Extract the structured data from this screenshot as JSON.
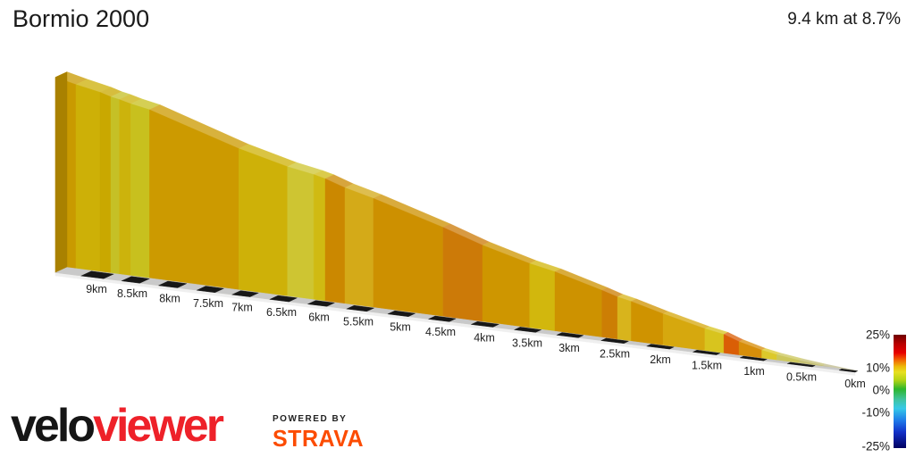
{
  "header": {
    "title": "Bormio 2000",
    "summary": "9.4 km at 8.7%"
  },
  "chart_data": {
    "type": "area",
    "title": "Bormio 2000",
    "distance_km": 9.4,
    "avg_gradient_pct": 8.7,
    "x_axis": {
      "unit": "km",
      "range_km": [
        0,
        9.4
      ],
      "note": "distance remaining, 9km at left through 0km at right",
      "ticks": [
        {
          "km": 9,
          "label": "9km"
        },
        {
          "km": 8.5,
          "label": "8.5km"
        },
        {
          "km": 8,
          "label": "8km"
        },
        {
          "km": 7.5,
          "label": "7.5km"
        },
        {
          "km": 7,
          "label": "7km"
        },
        {
          "km": 6.5,
          "label": "6.5km"
        },
        {
          "km": 6,
          "label": "6km"
        },
        {
          "km": 5.5,
          "label": "5.5km"
        },
        {
          "km": 5,
          "label": "5km"
        },
        {
          "km": 4.5,
          "label": "4.5km"
        },
        {
          "km": 4,
          "label": "4km"
        },
        {
          "km": 3.5,
          "label": "3.5km"
        },
        {
          "km": 3,
          "label": "3km"
        },
        {
          "km": 2.5,
          "label": "2.5km"
        },
        {
          "km": 2,
          "label": "2km"
        },
        {
          "km": 1.5,
          "label": "1.5km"
        },
        {
          "km": 1,
          "label": "1km"
        },
        {
          "km": 0.5,
          "label": "0.5km"
        },
        {
          "km": 0,
          "label": "0km"
        }
      ]
    },
    "segments": [
      {
        "from_km": 9.4,
        "to_km": 9.2,
        "gradient_pct": 10,
        "color": "#C99A00"
      },
      {
        "from_km": 9.2,
        "to_km": 8.95,
        "gradient_pct": 8,
        "color": "#CDB007"
      },
      {
        "from_km": 8.95,
        "to_km": 8.8,
        "gradient_pct": 8.5,
        "color": "#C9A800"
      },
      {
        "from_km": 8.8,
        "to_km": 8.68,
        "gradient_pct": 6,
        "color": "#C5C026"
      },
      {
        "from_km": 8.68,
        "to_km": 8.52,
        "gradient_pct": 7.5,
        "color": "#CCB30C"
      },
      {
        "from_km": 8.52,
        "to_km": 8.27,
        "gradient_pct": 6,
        "color": "#C8C01E"
      },
      {
        "from_km": 8.27,
        "to_km": 7.05,
        "gradient_pct": 9.5,
        "color": "#CC9A00"
      },
      {
        "from_km": 7.05,
        "to_km": 6.42,
        "gradient_pct": 8,
        "color": "#CEB108"
      },
      {
        "from_km": 6.42,
        "to_km": 6.07,
        "gradient_pct": 5.5,
        "color": "#CEC532"
      },
      {
        "from_km": 6.07,
        "to_km": 5.92,
        "gradient_pct": 7.5,
        "color": "#D0BA12"
      },
      {
        "from_km": 5.92,
        "to_km": 5.67,
        "gradient_pct": 11,
        "color": "#CB8800"
      },
      {
        "from_km": 5.67,
        "to_km": 5.32,
        "gradient_pct": 8.5,
        "color": "#D4AA18"
      },
      {
        "from_km": 5.32,
        "to_km": 4.47,
        "gradient_pct": 10,
        "color": "#CD9000"
      },
      {
        "from_km": 4.47,
        "to_km": 4.02,
        "gradient_pct": 12,
        "color": "#CC7A08"
      },
      {
        "from_km": 4.02,
        "to_km": 3.47,
        "gradient_pct": 9.5,
        "color": "#CE9600"
      },
      {
        "from_km": 3.47,
        "to_km": 3.17,
        "gradient_pct": 7,
        "color": "#D2B70D"
      },
      {
        "from_km": 3.17,
        "to_km": 2.64,
        "gradient_pct": 10,
        "color": "#CD9200"
      },
      {
        "from_km": 2.64,
        "to_km": 2.47,
        "gradient_pct": 11.5,
        "color": "#CC7E04"
      },
      {
        "from_km": 2.47,
        "to_km": 2.32,
        "gradient_pct": 8,
        "color": "#D8B41C"
      },
      {
        "from_km": 2.32,
        "to_km": 1.97,
        "gradient_pct": 10,
        "color": "#CF9300"
      },
      {
        "from_km": 1.97,
        "to_km": 1.52,
        "gradient_pct": 9,
        "color": "#D6A80E"
      },
      {
        "from_km": 1.52,
        "to_km": 1.32,
        "gradient_pct": 7,
        "color": "#D8C41E"
      },
      {
        "from_km": 1.32,
        "to_km": 1.16,
        "gradient_pct": 14,
        "color": "#DA5E06"
      },
      {
        "from_km": 1.16,
        "to_km": 0.92,
        "gradient_pct": 10,
        "color": "#D78E0A"
      },
      {
        "from_km": 0.92,
        "to_km": 0.76,
        "gradient_pct": 7,
        "color": "#DCC92B"
      },
      {
        "from_km": 0.76,
        "to_km": 0.52,
        "gradient_pct": 5,
        "color": "#CCC75C"
      },
      {
        "from_km": 0.52,
        "to_km": 0.3,
        "gradient_pct": 4.5,
        "color": "#C4BF72"
      },
      {
        "from_km": 0.3,
        "to_km": 0,
        "gradient_pct": 3.5,
        "color": "#C0BB8C"
      }
    ],
    "legend": {
      "position": "right",
      "ticks": [
        {
          "label": "25%",
          "value": 25
        },
        {
          "label": "10%",
          "value": 10
        },
        {
          "label": "0%",
          "value": 0
        },
        {
          "label": "-10%",
          "value": -10
        },
        {
          "label": "-25%",
          "value": -25
        }
      ],
      "gradient_stops": [
        {
          "color": "#6E0000",
          "pos": 0
        },
        {
          "color": "#B80000",
          "pos": 8
        },
        {
          "color": "#E80000",
          "pos": 16
        },
        {
          "color": "#F26000",
          "pos": 22
        },
        {
          "color": "#EDB908",
          "pos": 28
        },
        {
          "color": "#E8E020",
          "pos": 33
        },
        {
          "color": "#B4D414",
          "pos": 40
        },
        {
          "color": "#2CB62C",
          "pos": 48
        },
        {
          "color": "#3EC39E",
          "pos": 57
        },
        {
          "color": "#35C9E8",
          "pos": 65
        },
        {
          "color": "#1E78E8",
          "pos": 76
        },
        {
          "color": "#1230C8",
          "pos": 86
        },
        {
          "color": "#000060",
          "pos": 100
        }
      ]
    }
  },
  "footer": {
    "logo_black": "velo",
    "logo_red": "viewer",
    "powered_by": "POWERED BY",
    "strava": "STRAVA",
    "logo_red_color": "#EE2129",
    "strava_color": "#FC4C02"
  }
}
